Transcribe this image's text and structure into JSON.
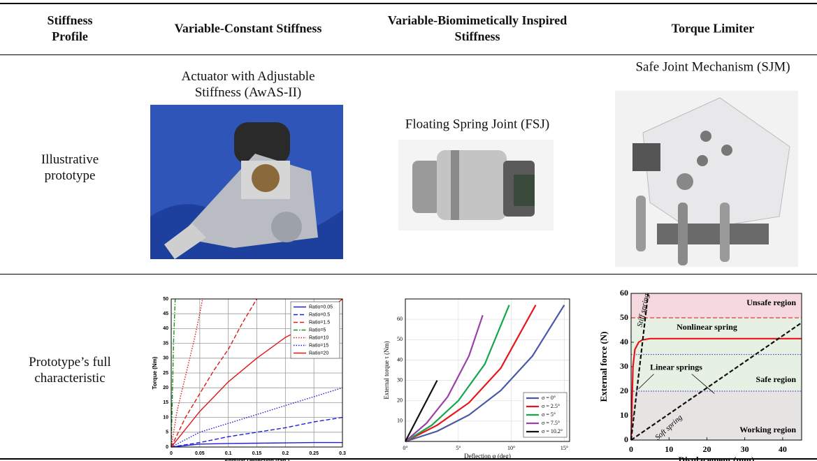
{
  "header": {
    "columns": [
      "Stiffness Profile",
      "Variable-Constant Stiffness",
      "Variable-Biomimetically Inspired Stiffness",
      "Torque Limiter"
    ]
  },
  "rows": [
    {
      "label": "Illustrative prototype",
      "cells": [
        "Actuator with Adjustable Stiffness (AwAS-II)",
        "Floating Spring Joint (FSJ)",
        "Safe Joint Mechanism (SJM)"
      ]
    },
    {
      "label": "Prototype’s full characteristic"
    }
  ],
  "charts": [
    {
      "type": "line",
      "xlabel": "Angular Deflection (rad.)",
      "ylabel": "Torque (Nm)",
      "xlim": [
        0,
        0.3
      ],
      "xticks": [
        0,
        0.05,
        0.1,
        0.15,
        0.2,
        0.25,
        0.3
      ],
      "ylim": [
        0,
        50
      ],
      "yticks": [
        0,
        5,
        10,
        15,
        20,
        25,
        30,
        35,
        40,
        45,
        50
      ],
      "grid": true,
      "legend": "upper right",
      "series": [
        {
          "name": "Ratio=0.05",
          "color": "#1f1fd6",
          "dash": "solid",
          "x": [
            0,
            0.05,
            0.1,
            0.15,
            0.2,
            0.25,
            0.3
          ],
          "values": [
            0,
            1,
            1.2,
            1.3,
            1.4,
            1.5,
            1.5
          ]
        },
        {
          "name": "Ratio=0.5",
          "color": "#1f1fd6",
          "dash": "dashed",
          "x": [
            0,
            0.05,
            0.1,
            0.15,
            0.2,
            0.25,
            0.3
          ],
          "values": [
            0,
            1.5,
            3.5,
            5,
            6.5,
            8.5,
            10
          ]
        },
        {
          "name": "Ratio=1.5",
          "color": "#e01818",
          "dash": "dashed",
          "x": [
            0,
            0.025,
            0.05,
            0.075,
            0.1,
            0.125,
            0.15
          ],
          "values": [
            0,
            10,
            18,
            26,
            33,
            42,
            50
          ]
        },
        {
          "name": "Ratio=5",
          "color": "#149614",
          "dash": "dashdot",
          "x": [
            0,
            0.004,
            0.007
          ],
          "values": [
            0,
            35,
            50
          ]
        },
        {
          "name": "Ratio=10",
          "color": "#e01818",
          "dash": "dotted",
          "x": [
            0,
            0.01,
            0.02,
            0.03,
            0.04,
            0.05,
            0.055
          ],
          "values": [
            0,
            12,
            20,
            28,
            36,
            45,
            50
          ]
        },
        {
          "name": "Ratio=15",
          "color": "#1f1fd6",
          "dash": "dotted",
          "x": [
            0,
            0.05,
            0.1,
            0.15,
            0.2,
            0.25,
            0.3
          ],
          "values": [
            0,
            5,
            8,
            11,
            14,
            17,
            20
          ]
        },
        {
          "name": "Ratio=20",
          "color": "#e01818",
          "dash": "solid",
          "x": [
            0,
            0.05,
            0.1,
            0.15,
            0.2,
            0.25,
            0.3
          ],
          "values": [
            0,
            12,
            22,
            30,
            37,
            42,
            50
          ]
        }
      ]
    },
    {
      "type": "line",
      "xlabel": "Deflection φ (deg)",
      "ylabel": "External torque τ (Nm)",
      "xlim": [
        0,
        15.5
      ],
      "xticks": [
        {
          "value": 0,
          "label": "0°"
        },
        {
          "value": 5,
          "label": "5°"
        },
        {
          "value": 10,
          "label": "10°"
        },
        {
          "value": 15,
          "label": "15°"
        }
      ],
      "ylim": [
        0,
        70
      ],
      "yticks": [
        10,
        20,
        30,
        40,
        50,
        60
      ],
      "grid": true,
      "legend": "lower right",
      "series": [
        {
          "name": "σ = 0°",
          "color": "#4a57a8",
          "dash": "solid",
          "x": [
            0,
            3,
            6,
            9,
            12,
            15
          ],
          "values": [
            0,
            5,
            13,
            25,
            42,
            67
          ]
        },
        {
          "name": "σ = 2.5°",
          "color": "#e8141b",
          "dash": "solid",
          "x": [
            0,
            3,
            6,
            9,
            12.3
          ],
          "values": [
            0,
            8,
            19,
            36,
            67
          ]
        },
        {
          "name": "σ = 5°",
          "color": "#14a84a",
          "dash": "solid",
          "x": [
            0,
            2.5,
            5,
            7.5,
            9.8
          ],
          "values": [
            0,
            8,
            20,
            38,
            67
          ]
        },
        {
          "name": "σ = 7.5°",
          "color": "#9b40a8",
          "dash": "solid",
          "x": [
            0,
            2,
            4,
            6,
            7.3
          ],
          "values": [
            0,
            9,
            22,
            42,
            62
          ]
        },
        {
          "name": "σ = 10.2°",
          "color": "#111111",
          "dash": "solid",
          "x": [
            0,
            1.5,
            3
          ],
          "values": [
            0,
            15,
            30
          ]
        }
      ]
    },
    {
      "type": "line",
      "xlabel": "Displacement (mm)",
      "ylabel": "External force (N)",
      "xlim": [
        0,
        45
      ],
      "xticks": [
        0,
        10,
        20,
        30,
        40
      ],
      "ylim": [
        0,
        60
      ],
      "yticks": [
        0,
        10,
        20,
        30,
        40,
        50,
        60
      ],
      "grid": false,
      "legend": false,
      "regions": [
        {
          "label": "Unsafe region",
          "from": 50,
          "to": 60,
          "color": "#f6d9df"
        },
        {
          "label": "Safe region",
          "from": 20,
          "to": 50,
          "color": "#e6f1e4"
        },
        {
          "label": "Working region",
          "from": 0,
          "to": 20,
          "color": "#e6e3e3"
        }
      ],
      "reference_lines": [
        {
          "value": 50,
          "color": "#e83a3a",
          "dash": "dashed"
        },
        {
          "value": 35,
          "color": "#4a4ad0",
          "dash": "dotted"
        },
        {
          "value": 20,
          "color": "#4a4ad0",
          "dash": "dotted"
        }
      ],
      "annotations": [
        "Linear springs"
      ],
      "series": [
        {
          "name": "Nonlinear spring",
          "color": "#e8141b",
          "dash": "solid",
          "x": [
            0,
            0.5,
            1,
            2,
            3,
            5,
            45
          ],
          "values": [
            0,
            30,
            37,
            40,
            41,
            41.5,
            41.5
          ]
        },
        {
          "name": "Stiff spring",
          "color": "#111111",
          "dash": "dashed",
          "x": [
            0,
            4.5
          ],
          "values": [
            0,
            60
          ]
        },
        {
          "name": "Soft spring",
          "color": "#111111",
          "dash": "dashed",
          "x": [
            0,
            45
          ],
          "values": [
            0,
            48
          ]
        }
      ]
    }
  ]
}
